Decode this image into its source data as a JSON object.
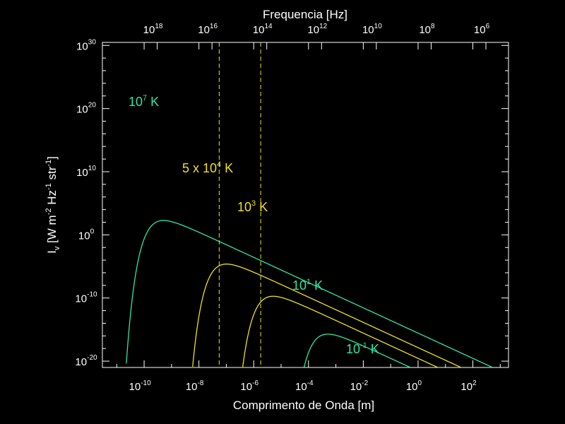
{
  "chart_data": {
    "type": "line",
    "xscale": "log",
    "yscale": "log",
    "xlabel": "Comprimento de Onda [m]",
    "ylabel_parts": [
      "I",
      "v",
      " [W m",
      "-2",
      " Hz",
      "-1",
      " str",
      "-1",
      "]"
    ],
    "top_axis_label": "Frequencia [Hz]",
    "xlim": [
      3e-12,
      2000
    ],
    "ylim": [
      1e-21,
      3e+30
    ],
    "x_ticks": [
      {
        "base": "10",
        "exp": "-10"
      },
      {
        "base": "10",
        "exp": "-8"
      },
      {
        "base": "10",
        "exp": "-6"
      },
      {
        "base": "10",
        "exp": "-4"
      },
      {
        "base": "10",
        "exp": "-2"
      },
      {
        "base": "10",
        "exp": "0"
      },
      {
        "base": "10",
        "exp": "2"
      }
    ],
    "x_tick_values": [
      1e-10,
      1e-08,
      1e-06,
      0.0001,
      0.01,
      1,
      100
    ],
    "y_ticks": [
      {
        "base": "10",
        "exp": "30"
      },
      {
        "base": "10",
        "exp": "20"
      },
      {
        "base": "10",
        "exp": "10"
      },
      {
        "base": "10",
        "exp": "0"
      },
      {
        "base": "10",
        "exp": "-10"
      },
      {
        "base": "10",
        "exp": "-20"
      }
    ],
    "y_tick_values": [
      1e+30,
      1e+20,
      10000000000.0,
      1,
      1e-10,
      1e-20
    ],
    "top_ticks": [
      {
        "base": "10",
        "exp": "18"
      },
      {
        "base": "10",
        "exp": "16"
      },
      {
        "base": "10",
        "exp": "14"
      },
      {
        "base": "10",
        "exp": "12"
      },
      {
        "base": "10",
        "exp": "10"
      },
      {
        "base": "10",
        "exp": "8"
      },
      {
        "base": "10",
        "exp": "6"
      }
    ],
    "top_tick_values": [
      1e+18,
      1e+16,
      100000000000000.0,
      1000000000000.0,
      10000000000.0,
      100000000.0,
      1000000.0
    ],
    "vlines": [
      5.5e-08,
      1.8e-06
    ],
    "series": [
      {
        "label": {
          "pre": "10",
          "exp": "7",
          "post": " K"
        },
        "temperature": 10000000.0,
        "color": "#2ee8a0"
      },
      {
        "label": {
          "pre": "5 x 10",
          "exp": "4",
          "post": " K"
        },
        "temperature": 50000.0,
        "color": "#f0e020"
      },
      {
        "label": {
          "pre": "10",
          "exp": "3",
          "post": " K"
        },
        "temperature": 1000.0,
        "color": "#f0e020"
      },
      {
        "label": {
          "pre": "10",
          "exp": "1",
          "post": " K"
        },
        "temperature": 10,
        "color": "#2ee8a0"
      },
      {
        "label": {
          "pre": "10",
          "exp": "-1",
          "post": " K"
        },
        "temperature": 0.1,
        "color": "#2ee8a0"
      }
    ],
    "grid": false,
    "colors": {
      "background": "#000000",
      "axes": "#ffffff",
      "vline": "#f0e020"
    }
  }
}
